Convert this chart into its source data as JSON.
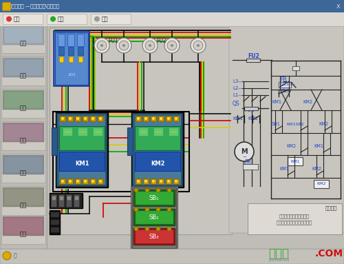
{
  "title_bar_text": "单工技能与实训 —电动机控制\\联动控制",
  "title_bar_bg": "#3d6699",
  "title_bar_fg": "#ffffff",
  "menubar_bg": "#d4d0c8",
  "left_panel_bg": "#c8c5be",
  "main_bg": "#c0bdb6",
  "wiring_bg": "#b8b5ae",
  "schematic_bg": "#c8c5be",
  "bottom_bar_bg": "#c4c1ba",
  "watermark_text": "接线图",
  "watermark_color": "#33aa33",
  "watermark2": "jiexiantu",
  "watermark2_color": "#888888",
  "com_text": ".COM",
  "com_color": "#cc1111",
  "hint_label": "操作提示",
  "note_text": "将鼠标放到原理图中器件\n符号上查看器件名称和作用！",
  "nav_items": [
    "首页",
    "返回",
    "帮助"
  ],
  "left_menu": [
    "器材",
    "电路",
    "原理",
    "布局",
    "连接",
    "运行",
    "排线"
  ],
  "figsize": [
    5.0,
    3.83
  ],
  "dpi": 100
}
